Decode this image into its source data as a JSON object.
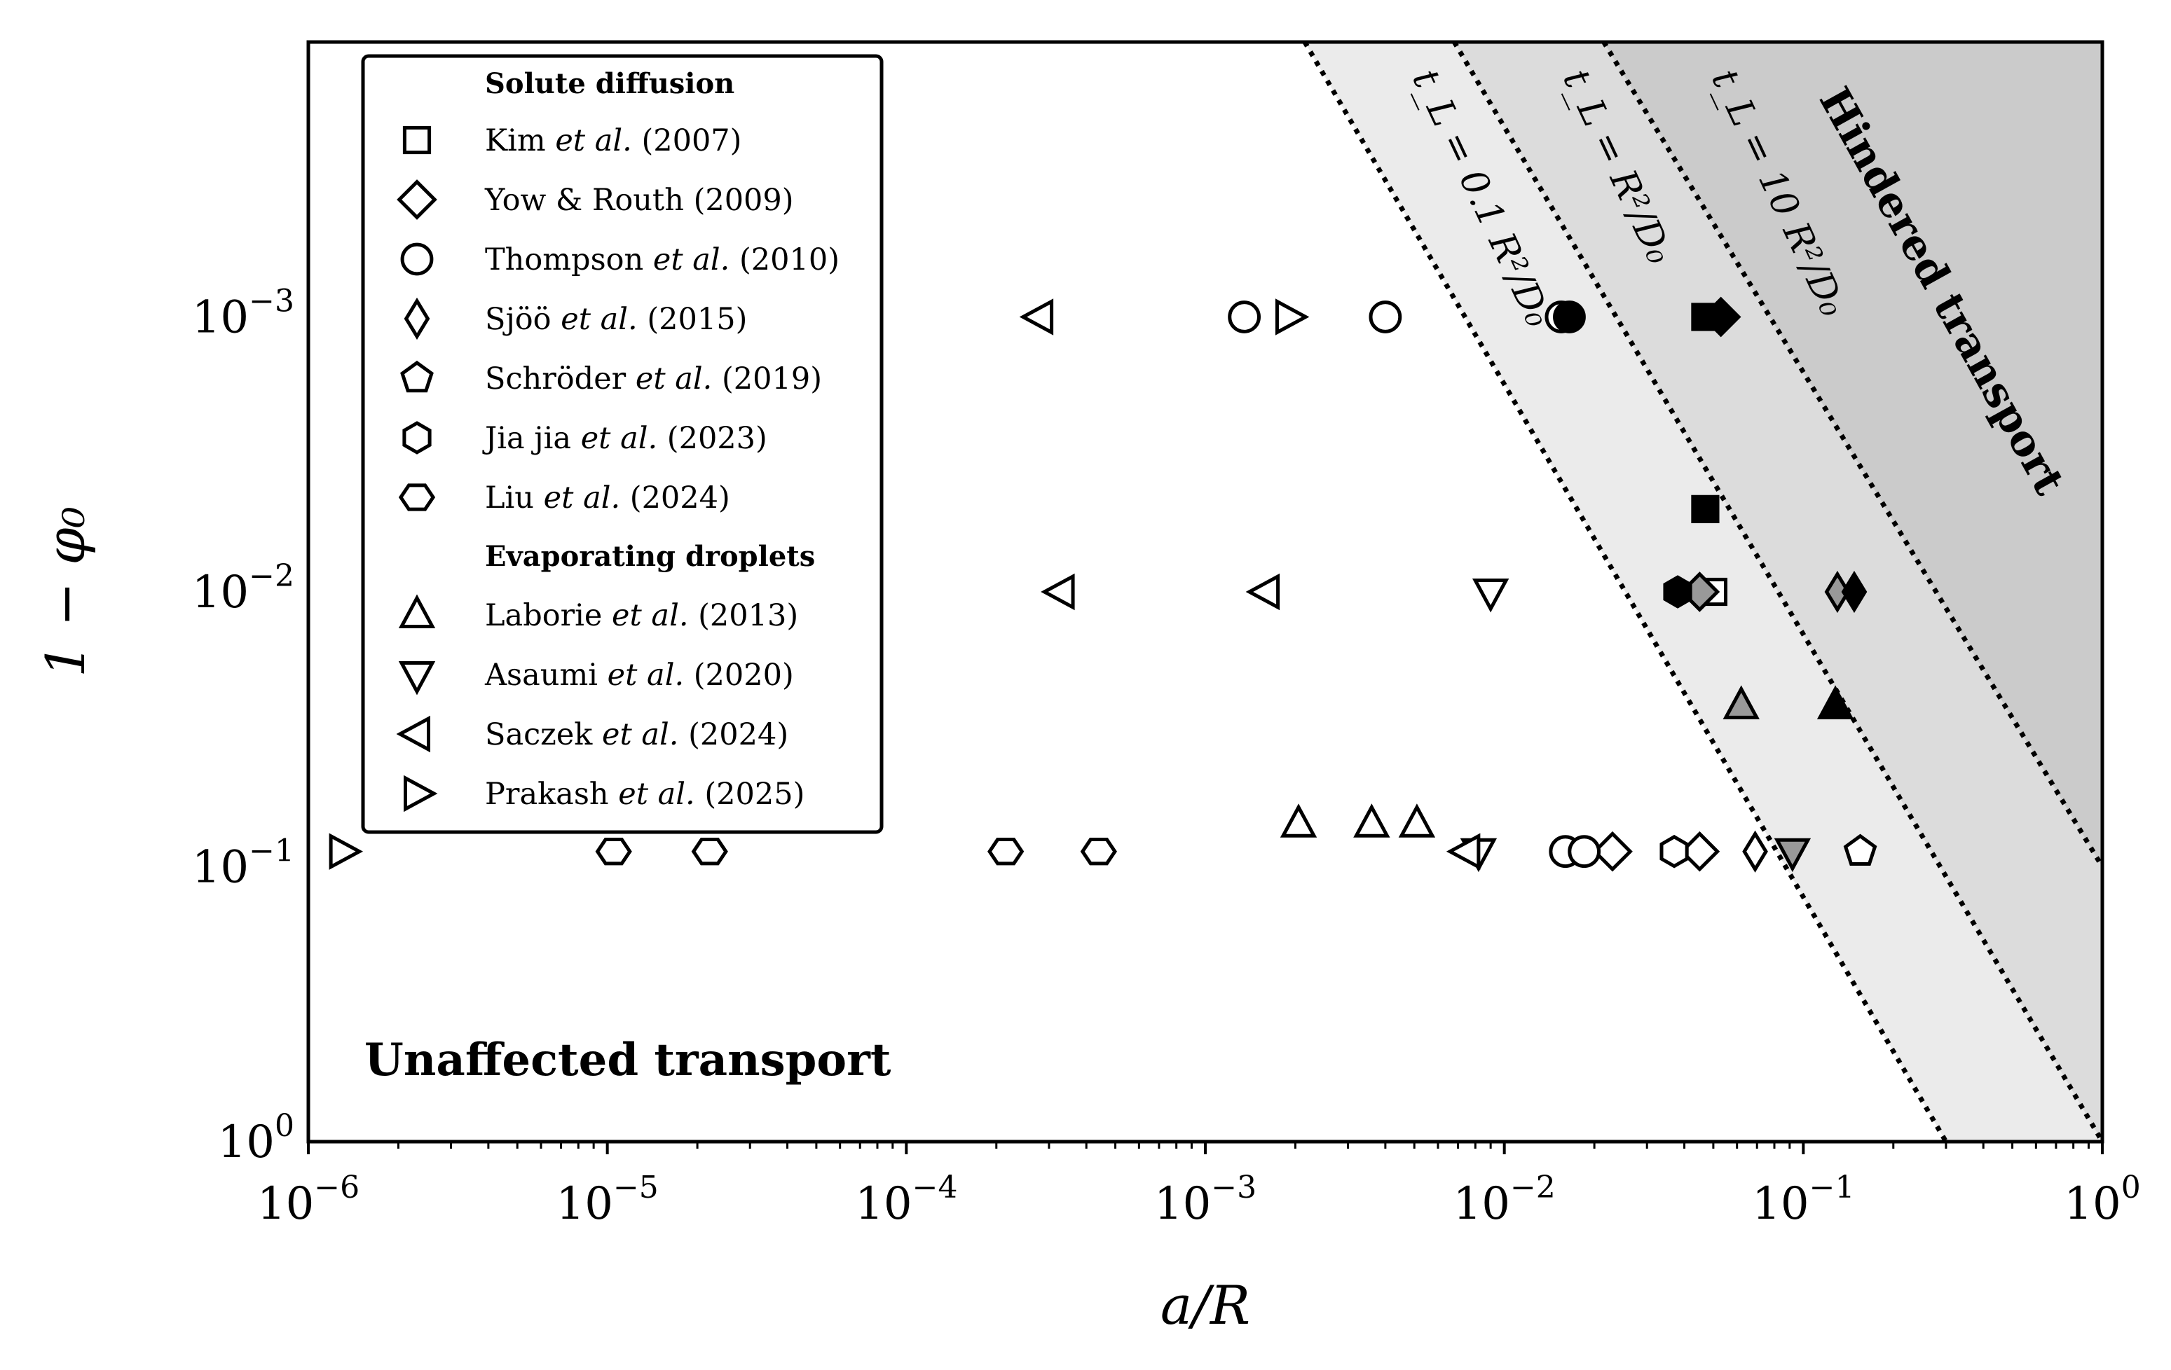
{
  "chart_data": {
    "type": "scatter",
    "xlabel": "a/R",
    "ylabel": "1 − φ₀",
    "xscale": "log",
    "yscale": "log",
    "xlim": [
      1e-06,
      1
    ],
    "ylim_top_to_bottom": [
      0.0001,
      1
    ],
    "x_ticks": [
      {
        "value": 1e-06,
        "base": "10",
        "exp": "−6"
      },
      {
        "value": 1e-05,
        "base": "10",
        "exp": "−5"
      },
      {
        "value": 0.0001,
        "base": "10",
        "exp": "−4"
      },
      {
        "value": 0.001,
        "base": "10",
        "exp": "−3"
      },
      {
        "value": 0.01,
        "base": "10",
        "exp": "−2"
      },
      {
        "value": 0.1,
        "base": "10",
        "exp": "−1"
      },
      {
        "value": 1,
        "base": "10",
        "exp": "0"
      }
    ],
    "y_ticks": [
      {
        "value": 0.001,
        "base": "10",
        "exp": "−3"
      },
      {
        "value": 0.01,
        "base": "10",
        "exp": "−2"
      },
      {
        "value": 0.1,
        "base": "10",
        "exp": "−1"
      },
      {
        "value": 1,
        "base": "10",
        "exp": "0"
      }
    ],
    "regions": [
      {
        "name": "unaffected",
        "label": "Unaffected transport",
        "color": "#ffffff"
      },
      {
        "name": "light",
        "color": "#ebebeb"
      },
      {
        "name": "mid",
        "color": "#dcdcdc"
      },
      {
        "name": "hindered",
        "label": "Hindered transport",
        "color": "#cbcbcb"
      }
    ],
    "boundary_lines": [
      {
        "name": "tl-0.1",
        "label": "t_L = 0.1 R²/D₀",
        "p": [
          {
            "x": 0.00215,
            "y": 0.0001
          },
          {
            "x": 0.3,
            "y": 1
          }
        ]
      },
      {
        "name": "tl-1",
        "label": "t_L = R²/D₀",
        "p": [
          {
            "x": 0.0068,
            "y": 0.0001
          },
          {
            "x": 1.0,
            "y": 1
          }
        ]
      },
      {
        "name": "tl-10",
        "label": "t_L = 10 R²/D₀",
        "p": [
          {
            "x": 0.0215,
            "y": 0.0001
          },
          {
            "x": 1.0,
            "y": 0.1
          }
        ]
      }
    ],
    "legend": {
      "heading_1": "Solute diffusion",
      "heading_2": "Evaporating droplets",
      "entries": [
        {
          "marker": "square",
          "author": "Kim",
          "etal": "et al.",
          "year": "(2007)"
        },
        {
          "marker": "diamond",
          "author": "Yow & Routh",
          "etal": "",
          "year": "(2009)"
        },
        {
          "marker": "circle",
          "author": "Thompson",
          "etal": "et al.",
          "year": "(2010)"
        },
        {
          "marker": "thin-diamond",
          "author": "Sjöö",
          "etal": "et al.",
          "year": "(2015)"
        },
        {
          "marker": "pentagon",
          "author": "Schröder",
          "etal": "et al.",
          "year": "(2019)"
        },
        {
          "marker": "hexagon-v",
          "author": "Jia jia",
          "etal": "et al.",
          "year": "(2023)"
        },
        {
          "marker": "hexagon-h",
          "author": "Liu",
          "etal": "et al.",
          "year": "(2024)"
        },
        {
          "marker": "tri-up",
          "author": "Laborie",
          "etal": "et al.",
          "year": "(2013)"
        },
        {
          "marker": "tri-down",
          "author": "Asaumi",
          "etal": "et al.",
          "year": "(2020)"
        },
        {
          "marker": "tri-left",
          "author": "Saczek",
          "etal": "et al.",
          "year": "(2024)"
        },
        {
          "marker": "tri-right",
          "author": "Prakash",
          "etal": "et al.",
          "year": "(2025)"
        }
      ]
    },
    "series": [
      {
        "name": "Kim et al. (2007)",
        "marker": "square",
        "points": [
          {
            "x": 0.05,
            "y": 0.01,
            "fill": "#ffffff"
          },
          {
            "x": 0.047,
            "y": 0.005,
            "fill": "#000000"
          },
          {
            "x": 0.047,
            "y": 0.001,
            "fill": "#000000"
          }
        ]
      },
      {
        "name": "Yow & Routh (2009)",
        "marker": "diamond",
        "points": [
          {
            "x": 0.023,
            "y": 0.088,
            "fill": "#ffffff"
          },
          {
            "x": 0.045,
            "y": 0.088,
            "fill": "#ffffff"
          },
          {
            "x": 0.045,
            "y": 0.01,
            "fill": "#999999"
          },
          {
            "x": 0.053,
            "y": 0.001,
            "fill": "#000000"
          }
        ]
      },
      {
        "name": "Thompson et al. (2010)",
        "marker": "circle",
        "points": [
          {
            "x": 0.00135,
            "y": 0.001,
            "fill": "#ffffff"
          },
          {
            "x": 0.004,
            "y": 0.001,
            "fill": "#ffffff"
          },
          {
            "x": 0.0155,
            "y": 0.001,
            "fill": "#ffffff"
          },
          {
            "x": 0.0165,
            "y": 0.001,
            "fill": "#000000"
          },
          {
            "x": 0.016,
            "y": 0.088,
            "fill": "#ffffff"
          },
          {
            "x": 0.0185,
            "y": 0.088,
            "fill": "#ffffff"
          }
        ]
      },
      {
        "name": "Sjöö et al. (2015)",
        "marker": "thin-diamond",
        "points": [
          {
            "x": 0.069,
            "y": 0.088,
            "fill": "#ffffff"
          },
          {
            "x": 0.13,
            "y": 0.01,
            "fill": "#999999"
          },
          {
            "x": 0.148,
            "y": 0.01,
            "fill": "#000000"
          }
        ]
      },
      {
        "name": "Schröder et al. (2019)",
        "marker": "pentagon",
        "points": [
          {
            "x": 0.155,
            "y": 0.088,
            "fill": "#ffffff"
          }
        ]
      },
      {
        "name": "Jia jia et al. (2023)",
        "marker": "hexagon-v",
        "points": [
          {
            "x": 0.037,
            "y": 0.088,
            "fill": "#ffffff"
          },
          {
            "x": 0.038,
            "y": 0.01,
            "fill": "#000000"
          }
        ]
      },
      {
        "name": "Liu et al. (2024)",
        "marker": "hexagon-h",
        "points": [
          {
            "x": 1.05e-05,
            "y": 0.088,
            "fill": "#ffffff"
          },
          {
            "x": 2.2e-05,
            "y": 0.088,
            "fill": "#ffffff"
          },
          {
            "x": 0.000215,
            "y": 0.088,
            "fill": "#ffffff"
          },
          {
            "x": 0.00044,
            "y": 0.088,
            "fill": "#ffffff"
          }
        ]
      },
      {
        "name": "Laborie et al. (2013)",
        "marker": "tri-up",
        "points": [
          {
            "x": 0.00205,
            "y": 0.07,
            "fill": "#ffffff"
          },
          {
            "x": 0.0036,
            "y": 0.07,
            "fill": "#ffffff"
          },
          {
            "x": 0.0051,
            "y": 0.07,
            "fill": "#ffffff"
          },
          {
            "x": 0.062,
            "y": 0.026,
            "fill": "#999999"
          },
          {
            "x": 0.128,
            "y": 0.026,
            "fill": "#000000"
          }
        ]
      },
      {
        "name": "Asaumi et al. (2020)",
        "marker": "tri-down",
        "points": [
          {
            "x": 0.009,
            "y": 0.01,
            "fill": "#ffffff"
          },
          {
            "x": 0.0082,
            "y": 0.088,
            "fill": "#ffffff"
          },
          {
            "x": 0.092,
            "y": 0.088,
            "fill": "#999999"
          }
        ]
      },
      {
        "name": "Saczek et al. (2024)",
        "marker": "tri-left",
        "points": [
          {
            "x": 0.00028,
            "y": 0.001,
            "fill": "#ffffff"
          },
          {
            "x": 0.00033,
            "y": 0.01,
            "fill": "#ffffff"
          },
          {
            "x": 0.0016,
            "y": 0.01,
            "fill": "#ffffff"
          },
          {
            "x": 0.0075,
            "y": 0.088,
            "fill": "#ffffff"
          }
        ]
      },
      {
        "name": "Prakash et al. (2025)",
        "marker": "tri-right",
        "points": [
          {
            "x": 1.3e-06,
            "y": 0.088,
            "fill": "#ffffff"
          },
          {
            "x": 0.0019,
            "y": 0.001,
            "fill": "#ffffff"
          }
        ]
      }
    ]
  }
}
